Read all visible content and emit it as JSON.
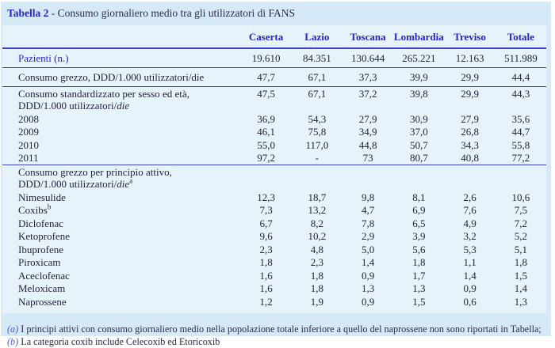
{
  "title": {
    "label": "Tabella 2",
    "separator": " - ",
    "text": "Consumo giornaliero medio tra gli utilizzatori di FANS"
  },
  "table": {
    "columns": [
      "Caserta",
      "Lazio",
      "Toscana",
      "Lombardia",
      "Treviso",
      "Totale"
    ],
    "rows": [
      {
        "label": "Pazienti (n.)",
        "blue": true,
        "pad": true,
        "sep": "thin",
        "values": [
          "19.610",
          "84.351",
          "130.644",
          "265.221",
          "12.163",
          "511.989"
        ]
      },
      {
        "label": "Consumo grezzo, DDD/1.000 utilizzatori/die",
        "pad": true,
        "sep": "thin",
        "values": [
          "47,7",
          "67,1",
          "37,3",
          "39,9",
          "29,9",
          "44,4"
        ]
      },
      {
        "label": "Consumo standardizzato per sesso ed età,",
        "line2": "DDD/1.000 utilizzatori/",
        "line2_italic": "die",
        "values": [
          "47,5",
          "67,1",
          "37,2",
          "39,8",
          "29,9",
          "44,3"
        ]
      },
      {
        "label": "2008",
        "values": [
          "36,9",
          "54,3",
          "27,9",
          "30,9",
          "27,9",
          "35,6"
        ]
      },
      {
        "label": "2009",
        "values": [
          "46,1",
          "75,8",
          "34,9",
          "37,0",
          "26,8",
          "44,7"
        ]
      },
      {
        "label": "2010",
        "values": [
          "55,0",
          "117,0",
          "44,8",
          "50,7",
          "34,3",
          "55,8"
        ]
      },
      {
        "label": "2011",
        "sep": "thin",
        "values": [
          "97,2",
          "-",
          "73",
          "80,7",
          "40,8",
          "77,2"
        ]
      },
      {
        "label": "Consumo grezzo per principio attivo,",
        "line2": "DDD/1.000 utilizzatori/",
        "line2_italic": "die",
        "line2_sup": "a",
        "values": [
          "",
          "",
          "",
          "",
          "",
          ""
        ]
      },
      {
        "label": "Nimesulide",
        "values": [
          "12,3",
          "18,7",
          "9,8",
          "8,1",
          "2,6",
          "10,6"
        ]
      },
      {
        "label": "Coxibs",
        "label_sup": "b",
        "values": [
          "7,3",
          "13,2",
          "4,7",
          "6,9",
          "7,6",
          "7,5"
        ]
      },
      {
        "label": "Diclofenac",
        "values": [
          "6,7",
          "8,2",
          "7,8",
          "6,5",
          "4,9",
          "7,2"
        ]
      },
      {
        "label": "Ketoprofene",
        "values": [
          "9,6",
          "10,2",
          "2,9",
          "3,9",
          "3,2",
          "5,2"
        ]
      },
      {
        "label": "Ibuprofene",
        "values": [
          "2,3",
          "4,8",
          "5,0",
          "5,6",
          "5,3",
          "5,1"
        ]
      },
      {
        "label": "Piroxicam",
        "values": [
          "1,8",
          "2,3",
          "1,4",
          "1,8",
          "1,1",
          "1,8"
        ]
      },
      {
        "label": "Aceclofenac",
        "values": [
          "1,6",
          "1,8",
          "0,9",
          "1,7",
          "1,4",
          "1,5"
        ]
      },
      {
        "label": "Meloxicam",
        "values": [
          "1,6",
          "1,8",
          "1,3",
          "1,3",
          "0,9",
          "1,4"
        ]
      },
      {
        "label": "Naprossene",
        "values": [
          "1,2",
          "1,9",
          "0,9",
          "1,5",
          "0,6",
          "1,3"
        ]
      }
    ]
  },
  "footnote": {
    "a_label": "(a)",
    "a_text": " I principi attivi con consumo giornaliero medio nella popolazione totale inferiore a quello del naprossene non sono riportati in Tabella; ",
    "b_label": "(b)",
    "b_text": " La categoria coxib include Celecoxib ed Etoricoxib"
  },
  "colors": {
    "outer_background": "#d5eaf6",
    "table_background": "#e7f3fb",
    "rule_blue": "#3a43cc",
    "heading_blue": "#2323c8",
    "footnote_label_blue": "#4a5bd4",
    "body_text": "#23233c"
  }
}
